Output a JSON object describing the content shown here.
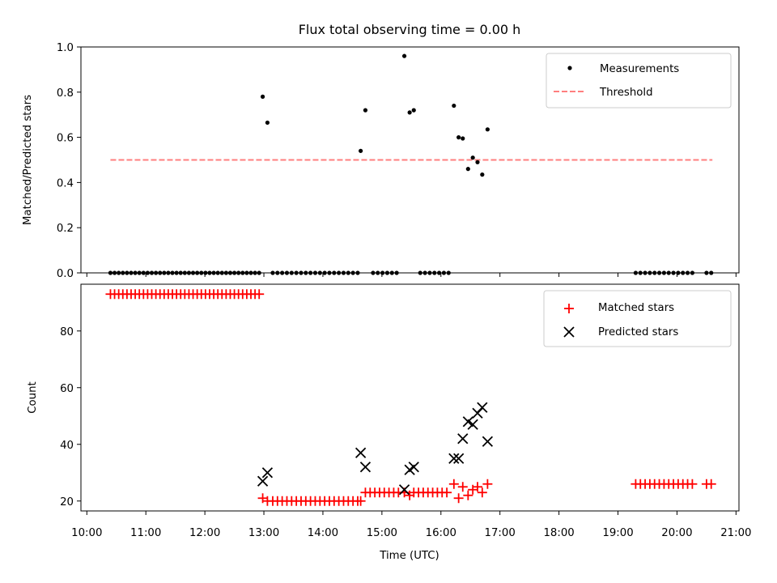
{
  "chart_data": [
    {
      "type": "scatter",
      "title": "Flux total observing time = 0.00 h",
      "xlabel": "",
      "ylabel": "Matched/Predicted stars",
      "x_unit": "hours (UTC)",
      "xlim": [
        9.9,
        21.05
      ],
      "ylim": [
        0,
        1.0
      ],
      "yticks": [
        0.0,
        0.2,
        0.4,
        0.6,
        0.8,
        1.0
      ],
      "ytick_labels": [
        "0.0",
        "0.2",
        "0.4",
        "0.6",
        "0.8",
        "1.0"
      ],
      "xtick_labels_shown": false,
      "grid": false,
      "legend_position": "top-right",
      "series": [
        {
          "name": "Measurements",
          "marker": "dot",
          "color": "#000000",
          "points": [
            [
              10.4,
              0.0
            ],
            [
              10.47,
              0.0
            ],
            [
              10.54,
              0.0
            ],
            [
              10.61,
              0.0
            ],
            [
              10.68,
              0.0
            ],
            [
              10.75,
              0.0
            ],
            [
              10.82,
              0.0
            ],
            [
              10.89,
              0.0
            ],
            [
              10.96,
              0.0
            ],
            [
              11.03,
              0.0
            ],
            [
              11.1,
              0.0
            ],
            [
              11.17,
              0.0
            ],
            [
              11.24,
              0.0
            ],
            [
              11.31,
              0.0
            ],
            [
              11.38,
              0.0
            ],
            [
              11.45,
              0.0
            ],
            [
              11.52,
              0.0
            ],
            [
              11.59,
              0.0
            ],
            [
              11.66,
              0.0
            ],
            [
              11.73,
              0.0
            ],
            [
              11.8,
              0.0
            ],
            [
              11.87,
              0.0
            ],
            [
              11.94,
              0.0
            ],
            [
              12.01,
              0.0
            ],
            [
              12.08,
              0.0
            ],
            [
              12.15,
              0.0
            ],
            [
              12.22,
              0.0
            ],
            [
              12.29,
              0.0
            ],
            [
              12.36,
              0.0
            ],
            [
              12.43,
              0.0
            ],
            [
              12.5,
              0.0
            ],
            [
              12.57,
              0.0
            ],
            [
              12.64,
              0.0
            ],
            [
              12.71,
              0.0
            ],
            [
              12.78,
              0.0
            ],
            [
              12.85,
              0.0
            ],
            [
              12.92,
              0.0
            ],
            [
              12.98,
              0.78
            ],
            [
              13.06,
              0.665
            ],
            [
              13.15,
              0.0
            ],
            [
              13.23,
              0.0
            ],
            [
              13.31,
              0.0
            ],
            [
              13.39,
              0.0
            ],
            [
              13.47,
              0.0
            ],
            [
              13.55,
              0.0
            ],
            [
              13.63,
              0.0
            ],
            [
              13.71,
              0.0
            ],
            [
              13.79,
              0.0
            ],
            [
              13.87,
              0.0
            ],
            [
              13.95,
              0.0
            ],
            [
              14.03,
              0.0
            ],
            [
              14.11,
              0.0
            ],
            [
              14.19,
              0.0
            ],
            [
              14.27,
              0.0
            ],
            [
              14.35,
              0.0
            ],
            [
              14.43,
              0.0
            ],
            [
              14.51,
              0.0
            ],
            [
              14.59,
              0.0
            ],
            [
              14.64,
              0.54
            ],
            [
              14.72,
              0.72
            ],
            [
              14.85,
              0.0
            ],
            [
              14.93,
              0.0
            ],
            [
              15.01,
              0.0
            ],
            [
              15.09,
              0.0
            ],
            [
              15.17,
              0.0
            ],
            [
              15.25,
              0.0
            ],
            [
              15.38,
              0.96
            ],
            [
              15.47,
              0.71
            ],
            [
              15.54,
              0.72
            ],
            [
              15.65,
              0.0
            ],
            [
              15.73,
              0.0
            ],
            [
              15.81,
              0.0
            ],
            [
              15.89,
              0.0
            ],
            [
              15.97,
              0.0
            ],
            [
              16.05,
              0.0
            ],
            [
              16.13,
              0.0
            ],
            [
              16.22,
              0.74
            ],
            [
              16.3,
              0.6
            ],
            [
              16.37,
              0.595
            ],
            [
              16.46,
              0.46
            ],
            [
              16.54,
              0.51
            ],
            [
              16.62,
              0.49
            ],
            [
              16.7,
              0.435
            ],
            [
              16.79,
              0.635
            ],
            [
              19.3,
              0.0
            ],
            [
              19.38,
              0.0
            ],
            [
              19.46,
              0.0
            ],
            [
              19.54,
              0.0
            ],
            [
              19.62,
              0.0
            ],
            [
              19.7,
              0.0
            ],
            [
              19.78,
              0.0
            ],
            [
              19.86,
              0.0
            ],
            [
              19.94,
              0.0
            ],
            [
              20.02,
              0.0
            ],
            [
              20.1,
              0.0
            ],
            [
              20.18,
              0.0
            ],
            [
              20.26,
              0.0
            ],
            [
              20.5,
              0.0
            ],
            [
              20.58,
              0.0
            ]
          ]
        },
        {
          "name": "Threshold",
          "style": "dashed-line",
          "color": "#ff7f7f",
          "points": [
            [
              10.4,
              0.5
            ],
            [
              20.6,
              0.5
            ]
          ]
        }
      ]
    },
    {
      "type": "scatter",
      "title": "",
      "xlabel": "Time (UTC)",
      "ylabel": "Count",
      "x_unit": "hours (UTC)",
      "xlim": [
        9.9,
        21.05
      ],
      "ylim": [
        16.5,
        96.5
      ],
      "xticks": [
        10,
        11,
        12,
        13,
        14,
        15,
        16,
        17,
        18,
        19,
        20,
        21
      ],
      "xtick_labels": [
        "10:00",
        "11:00",
        "12:00",
        "13:00",
        "14:00",
        "15:00",
        "16:00",
        "17:00",
        "18:00",
        "19:00",
        "20:00",
        "21:00"
      ],
      "yticks": [
        20,
        40,
        60,
        80
      ],
      "ytick_labels": [
        "20",
        "40",
        "60",
        "80"
      ],
      "grid": false,
      "legend_position": "top-right",
      "series": [
        {
          "name": "Matched stars",
          "marker": "plus",
          "color": "#ff0000",
          "points": [
            [
              10.4,
              93
            ],
            [
              10.47,
              93
            ],
            [
              10.54,
              93
            ],
            [
              10.61,
              93
            ],
            [
              10.68,
              93
            ],
            [
              10.75,
              93
            ],
            [
              10.82,
              93
            ],
            [
              10.89,
              93
            ],
            [
              10.96,
              93
            ],
            [
              11.03,
              93
            ],
            [
              11.1,
              93
            ],
            [
              11.17,
              93
            ],
            [
              11.24,
              93
            ],
            [
              11.31,
              93
            ],
            [
              11.38,
              93
            ],
            [
              11.45,
              93
            ],
            [
              11.52,
              93
            ],
            [
              11.59,
              93
            ],
            [
              11.66,
              93
            ],
            [
              11.73,
              93
            ],
            [
              11.8,
              93
            ],
            [
              11.87,
              93
            ],
            [
              11.94,
              93
            ],
            [
              12.01,
              93
            ],
            [
              12.08,
              93
            ],
            [
              12.15,
              93
            ],
            [
              12.22,
              93
            ],
            [
              12.29,
              93
            ],
            [
              12.36,
              93
            ],
            [
              12.43,
              93
            ],
            [
              12.5,
              93
            ],
            [
              12.57,
              93
            ],
            [
              12.64,
              93
            ],
            [
              12.71,
              93
            ],
            [
              12.78,
              93
            ],
            [
              12.85,
              93
            ],
            [
              12.92,
              93
            ],
            [
              12.98,
              21
            ],
            [
              13.06,
              20
            ],
            [
              13.15,
              20
            ],
            [
              13.23,
              20
            ],
            [
              13.31,
              20
            ],
            [
              13.39,
              20
            ],
            [
              13.47,
              20
            ],
            [
              13.55,
              20
            ],
            [
              13.63,
              20
            ],
            [
              13.71,
              20
            ],
            [
              13.79,
              20
            ],
            [
              13.87,
              20
            ],
            [
              13.95,
              20
            ],
            [
              14.03,
              20
            ],
            [
              14.11,
              20
            ],
            [
              14.19,
              20
            ],
            [
              14.27,
              20
            ],
            [
              14.35,
              20
            ],
            [
              14.43,
              20
            ],
            [
              14.51,
              20
            ],
            [
              14.59,
              20
            ],
            [
              14.64,
              20
            ],
            [
              14.72,
              23
            ],
            [
              14.8,
              23
            ],
            [
              14.88,
              23
            ],
            [
              14.96,
              23
            ],
            [
              15.04,
              23
            ],
            [
              15.12,
              23
            ],
            [
              15.2,
              23
            ],
            [
              15.28,
              23
            ],
            [
              15.38,
              23
            ],
            [
              15.47,
              22
            ],
            [
              15.54,
              23
            ],
            [
              15.62,
              23
            ],
            [
              15.7,
              23
            ],
            [
              15.78,
              23
            ],
            [
              15.86,
              23
            ],
            [
              15.94,
              23
            ],
            [
              16.02,
              23
            ],
            [
              16.1,
              23
            ],
            [
              16.22,
              26
            ],
            [
              16.3,
              21
            ],
            [
              16.37,
              25
            ],
            [
              16.46,
              22
            ],
            [
              16.54,
              24
            ],
            [
              16.62,
              25
            ],
            [
              16.7,
              23
            ],
            [
              16.79,
              26
            ],
            [
              19.3,
              26
            ],
            [
              19.38,
              26
            ],
            [
              19.46,
              26
            ],
            [
              19.54,
              26
            ],
            [
              19.62,
              26
            ],
            [
              19.7,
              26
            ],
            [
              19.78,
              26
            ],
            [
              19.86,
              26
            ],
            [
              19.94,
              26
            ],
            [
              20.02,
              26
            ],
            [
              20.1,
              26
            ],
            [
              20.18,
              26
            ],
            [
              20.26,
              26
            ],
            [
              20.5,
              26
            ],
            [
              20.58,
              26
            ]
          ]
        },
        {
          "name": "Predicted stars",
          "marker": "x",
          "color": "#000000",
          "points": [
            [
              12.98,
              27
            ],
            [
              13.06,
              30
            ],
            [
              14.64,
              37
            ],
            [
              14.72,
              32
            ],
            [
              15.38,
              24
            ],
            [
              15.47,
              31
            ],
            [
              15.54,
              32
            ],
            [
              16.22,
              35
            ],
            [
              16.3,
              35
            ],
            [
              16.37,
              42
            ],
            [
              16.46,
              48
            ],
            [
              16.54,
              47
            ],
            [
              16.62,
              51
            ],
            [
              16.7,
              53
            ],
            [
              16.79,
              41
            ]
          ]
        }
      ]
    }
  ]
}
